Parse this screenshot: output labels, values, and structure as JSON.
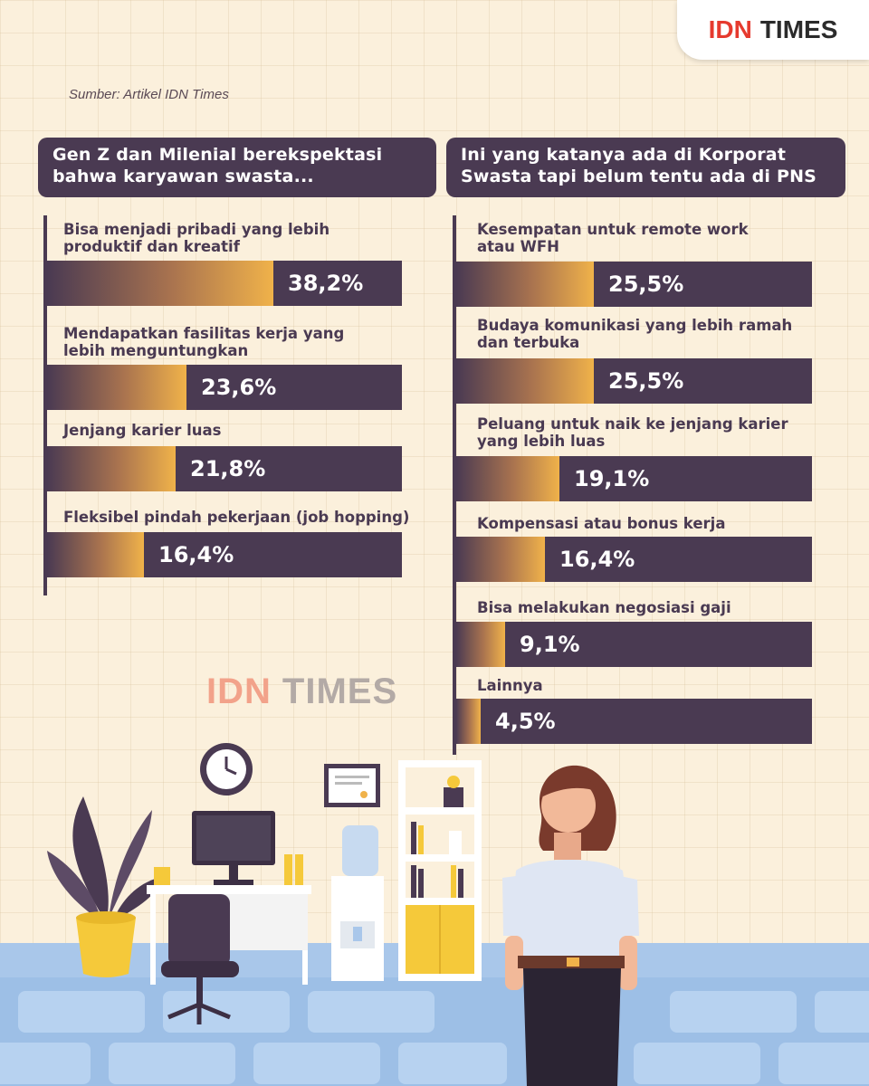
{
  "logo": {
    "part1": "IDN",
    "part2": "TIMES"
  },
  "source": "Sumber: Artikel IDN Times",
  "watermark": {
    "part1": "IDN",
    "part2": "TIMES"
  },
  "colors": {
    "bar": "#4a3a52",
    "accent": "#f0b24a",
    "background": "#fbf0dc",
    "brand_red": "#e63a2e"
  },
  "chart_data": [
    {
      "type": "bar",
      "orientation": "horizontal",
      "title": "Gen Z dan Milenial berekspektasi bahwa karyawan swasta...",
      "title_lines": [
        "Gen Z dan Milenial berekspektasi",
        "bahwa karyawan swasta..."
      ],
      "value_format": "percent",
      "categories": [
        "Bisa menjadi pribadi yang lebih produktif dan kreatif",
        "Mendapatkan fasilitas kerja yang lebih menguntungkan",
        "Jenjang karier luas",
        "Fleksibel pindah pekerjaan (job hopping)"
      ],
      "label_lines": [
        [
          "Bisa menjadi pribadi yang lebih",
          "produktif dan kreatif"
        ],
        [
          "Mendapatkan fasilitas kerja yang",
          "lebih menguntungkan"
        ],
        [
          "Jenjang karier luas"
        ],
        [
          "Fleksibel pindah pekerjaan (job hopping)"
        ]
      ],
      "values": [
        38.2,
        23.6,
        21.8,
        16.4
      ],
      "value_labels": [
        "38,2%",
        "23,6%",
        "21,8%",
        "16,4%"
      ]
    },
    {
      "type": "bar",
      "orientation": "horizontal",
      "title": "Ini yang katanya ada di Korporat Swasta tapi belum tentu ada di PNS",
      "title_lines": [
        "Ini yang katanya ada di Korporat",
        "Swasta tapi belum tentu ada di PNS"
      ],
      "value_format": "percent",
      "categories": [
        "Kesempatan untuk remote work atau WFH",
        "Budaya komunikasi yang lebih ramah dan terbuka",
        "Peluang untuk naik ke jenjang karier yang lebih luas",
        "Kompensasi atau bonus kerja",
        "Bisa melakukan negosiasi gaji",
        "Lainnya"
      ],
      "label_lines": [
        [
          "Kesempatan untuk remote work",
          "atau WFH"
        ],
        [
          "Budaya komunikasi yang lebih ramah",
          "dan terbuka"
        ],
        [
          "Peluang untuk naik ke jenjang karier",
          "yang lebih luas"
        ],
        [
          "Kompensasi atau bonus kerja"
        ],
        [
          "Bisa melakukan negosiasi gaji"
        ],
        [
          "Lainnya"
        ]
      ],
      "values": [
        25.5,
        25.5,
        19.1,
        16.4,
        9.1,
        4.5
      ],
      "value_labels": [
        "25,5%",
        "25,5%",
        "19,1%",
        "16,4%",
        "9,1%",
        "4,5%"
      ]
    }
  ]
}
